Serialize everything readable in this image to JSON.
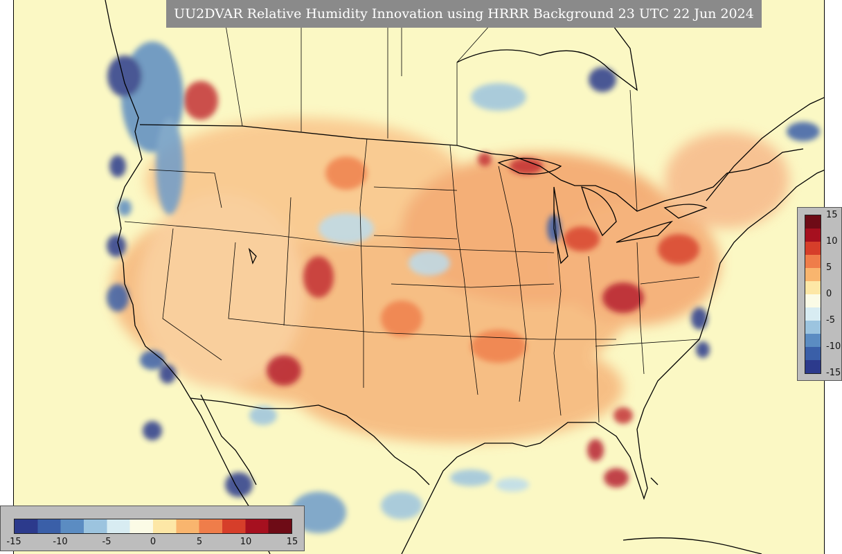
{
  "title": "UU2DVAR Relative Humidity Innovation using HRRR Background 23 UTC 22 Jun 2024",
  "colorbar": {
    "min": -15,
    "max": 15,
    "ticks": [
      "15",
      "10",
      "5",
      "0",
      "-5",
      "-10",
      "-15"
    ],
    "bottom_ticks": [
      "-15",
      "-10",
      "-5",
      "0",
      "5",
      "10",
      "15"
    ],
    "colors": [
      "#2c3a8c",
      "#3a5fa8",
      "#5b8cc2",
      "#9cc4df",
      "#d8ecf2",
      "#fbfbe6",
      "#fde7a6",
      "#f9b56e",
      "#ef7d4a",
      "#d63e2a",
      "#a6101f",
      "#6e0b16"
    ]
  },
  "colors": {
    "background": "#fbf8c4",
    "positive_strong": "#b2182b",
    "positive_mid": "#ef7d4a",
    "positive_light": "#fbc68a",
    "negative_strong": "#2c3a8c",
    "negative_mid": "#5b8cc2",
    "negative_light": "#bcdcec",
    "boundary": "#000000"
  }
}
